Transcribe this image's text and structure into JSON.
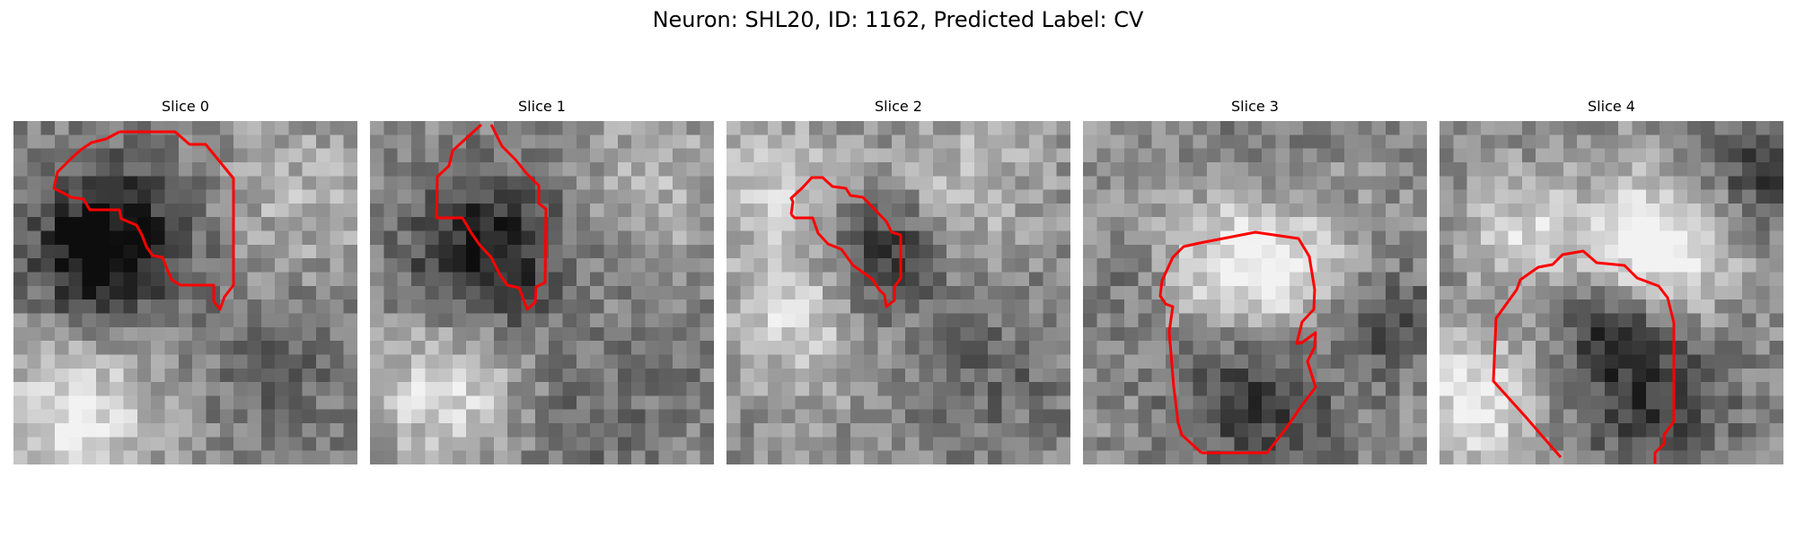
{
  "figure": {
    "title": "Neuron: SHL20, ID: 1162, Predicted Label: CV"
  },
  "panels": [
    {
      "title": "Slice 0"
    },
    {
      "title": "Slice 1"
    },
    {
      "title": "Slice 2"
    },
    {
      "title": "Slice 3"
    },
    {
      "title": "Slice 4"
    }
  ],
  "colors": {
    "contour": "#ff0000"
  }
}
